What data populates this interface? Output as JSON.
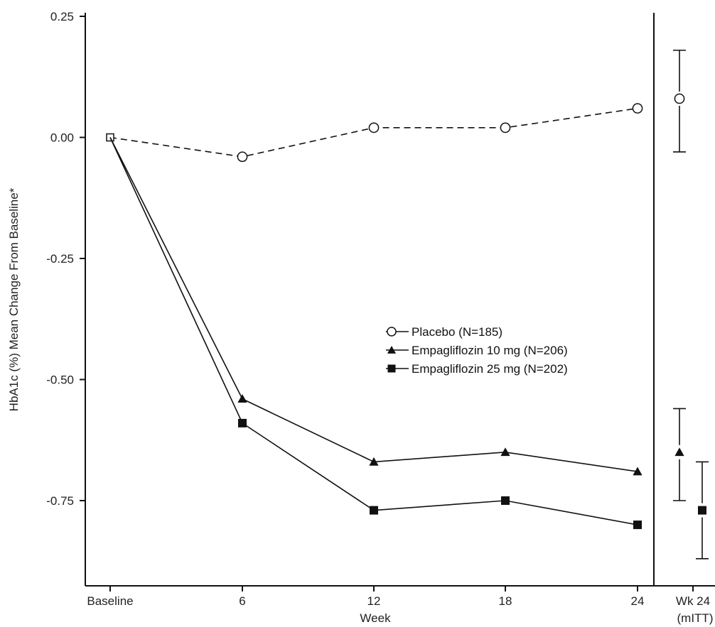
{
  "chart_data": {
    "type": "line",
    "title": "",
    "xlabel": "Week",
    "ylabel": "HbA1c (%) Mean Change From Baseline*",
    "ylim": [
      -0.9,
      0.25
    ],
    "y_ticks": [
      "0.25",
      "0.00",
      "-0.25",
      "-0.50",
      "-0.75"
    ],
    "y_tick_values": [
      0.25,
      0.0,
      -0.25,
      -0.5,
      -0.75
    ],
    "categories": [
      "Baseline",
      "6",
      "12",
      "18",
      "24"
    ],
    "endpoint_label_line1": "Wk 24",
    "endpoint_label_line2": "(mITT)",
    "grid": false,
    "legend_position": "center-right",
    "series": [
      {
        "name": "Placebo (N=185)",
        "marker": "open-circle",
        "line_style": "dashed",
        "color": "#111111",
        "values": [
          0.0,
          -0.04,
          0.02,
          0.02,
          0.06
        ],
        "endpoint": {
          "mean": 0.08,
          "lower": -0.03,
          "upper": 0.18
        }
      },
      {
        "name": "Empagliflozin 10 mg (N=206)",
        "marker": "filled-triangle",
        "line_style": "solid",
        "color": "#111111",
        "values": [
          0.0,
          -0.54,
          -0.67,
          -0.65,
          -0.69
        ],
        "endpoint": {
          "mean": -0.65,
          "lower": -0.75,
          "upper": -0.56
        }
      },
      {
        "name": "Empagliflozin 25 mg (N=202)",
        "marker": "filled-square",
        "line_style": "solid",
        "color": "#111111",
        "values": [
          0.0,
          -0.59,
          -0.77,
          -0.75,
          -0.8
        ],
        "endpoint": {
          "mean": -0.77,
          "lower": -0.87,
          "upper": -0.67
        }
      }
    ]
  }
}
